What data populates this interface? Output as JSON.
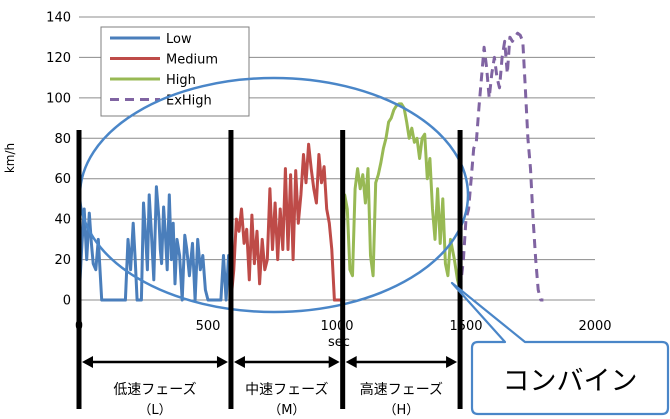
{
  "chart_data": {
    "type": "line",
    "xlabel": "sec",
    "ylabel": "km/h",
    "xlim": [
      0,
      2000
    ],
    "ylim": [
      0,
      140
    ],
    "xticks": [
      0,
      500,
      1000,
      1500,
      2000
    ],
    "yticks": [
      0,
      20,
      40,
      60,
      80,
      100,
      120,
      140
    ],
    "grid": "horizontal",
    "legend": "top-left",
    "series": [
      {
        "name": "Low",
        "color": "#4a7ebb",
        "dash": "solid",
        "x": [
          0,
          10,
          20,
          30,
          40,
          48,
          55,
          65,
          75,
          88,
          100,
          110,
          120,
          130,
          140,
          150,
          160,
          170,
          180,
          190,
          200,
          210,
          218,
          225,
          235,
          242,
          250,
          258,
          265,
          272,
          280,
          290,
          300,
          310,
          315,
          320,
          328,
          335,
          342,
          350,
          358,
          365,
          372,
          380,
          390,
          400,
          410,
          418,
          428,
          440,
          450,
          460,
          470,
          480,
          490,
          500,
          512,
          520,
          528,
          535,
          542,
          550,
          560,
          570,
          580,
          589
        ],
        "y": [
          0,
          25,
          45,
          20,
          43,
          28,
          18,
          15,
          30,
          0,
          0,
          0,
          0,
          0,
          0,
          0,
          0,
          0,
          0,
          30,
          15,
          38,
          20,
          0,
          0,
          0,
          48,
          32,
          15,
          52,
          35,
          10,
          56,
          40,
          25,
          18,
          46,
          32,
          15,
          52,
          20,
          38,
          8,
          30,
          22,
          0,
          32,
          25,
          12,
          28,
          0,
          30,
          15,
          22,
          5,
          0,
          0,
          0,
          0,
          0,
          0,
          0,
          22,
          0,
          22,
          0
        ]
      },
      {
        "name": "Medium",
        "color": "#be4b48",
        "dash": "solid",
        "x": [
          589,
          600,
          610,
          620,
          630,
          640,
          650,
          660,
          670,
          680,
          690,
          700,
          710,
          720,
          730,
          740,
          750,
          760,
          770,
          780,
          790,
          800,
          810,
          820,
          830,
          840,
          850,
          860,
          870,
          880,
          890,
          900,
          910,
          920,
          930,
          940,
          950,
          960,
          970,
          980,
          990,
          1000,
          1022
        ],
        "y": [
          0,
          15,
          40,
          34,
          45,
          28,
          35,
          10,
          42,
          18,
          34,
          8,
          30,
          15,
          20,
          55,
          25,
          48,
          20,
          45,
          25,
          65,
          25,
          62,
          20,
          64,
          38,
          52,
          72,
          58,
          77,
          65,
          55,
          48,
          72,
          58,
          66,
          45,
          38,
          25,
          0,
          0,
          0
        ]
      },
      {
        "name": "High",
        "color": "#98b954",
        "dash": "solid",
        "x": [
          1022,
          1030,
          1040,
          1050,
          1060,
          1070,
          1080,
          1090,
          1100,
          1110,
          1120,
          1130,
          1140,
          1150,
          1160,
          1170,
          1180,
          1190,
          1200,
          1210,
          1220,
          1230,
          1240,
          1250,
          1260,
          1270,
          1280,
          1290,
          1300,
          1310,
          1320,
          1330,
          1340,
          1350,
          1360,
          1370,
          1380,
          1390,
          1400,
          1410,
          1420,
          1430,
          1440,
          1455,
          1467,
          1477
        ],
        "y": [
          25,
          52,
          45,
          15,
          12,
          55,
          65,
          55,
          62,
          48,
          65,
          22,
          12,
          58,
          62,
          68,
          75,
          80,
          88,
          90,
          94,
          96,
          97,
          97,
          95,
          88,
          80,
          85,
          78,
          80,
          70,
          80,
          82,
          60,
          70,
          45,
          30,
          55,
          28,
          50,
          18,
          12,
          30,
          20,
          10,
          5
        ]
      },
      {
        "name": "ExHigh",
        "color": "#8064a2",
        "dash": "dashed",
        "x": [
          1477,
          1490,
          1500,
          1510,
          1520,
          1530,
          1540,
          1550,
          1560,
          1570,
          1580,
          1590,
          1600,
          1610,
          1620,
          1630,
          1640,
          1650,
          1660,
          1670,
          1680,
          1690,
          1700,
          1710,
          1720,
          1730,
          1740,
          1750,
          1760,
          1770,
          1780,
          1790,
          1800
        ],
        "y": [
          5,
          20,
          40,
          45,
          60,
          75,
          78,
          95,
          110,
          125,
          115,
          100,
          112,
          120,
          110,
          105,
          120,
          128,
          112,
          130,
          128,
          130,
          132,
          131,
          128,
          105,
          80,
          65,
          40,
          20,
          5,
          0,
          0
        ]
      }
    ],
    "phase_dividers_x": [
      0,
      589,
      1022,
      1477
    ],
    "phases": [
      {
        "label": "低速フェーズ",
        "sub": "（L）"
      },
      {
        "label": "中速フェーズ",
        "sub": "（M）"
      },
      {
        "label": "高速フェーズ",
        "sub": "（H）"
      }
    ],
    "combine_label": "コンバイン"
  }
}
